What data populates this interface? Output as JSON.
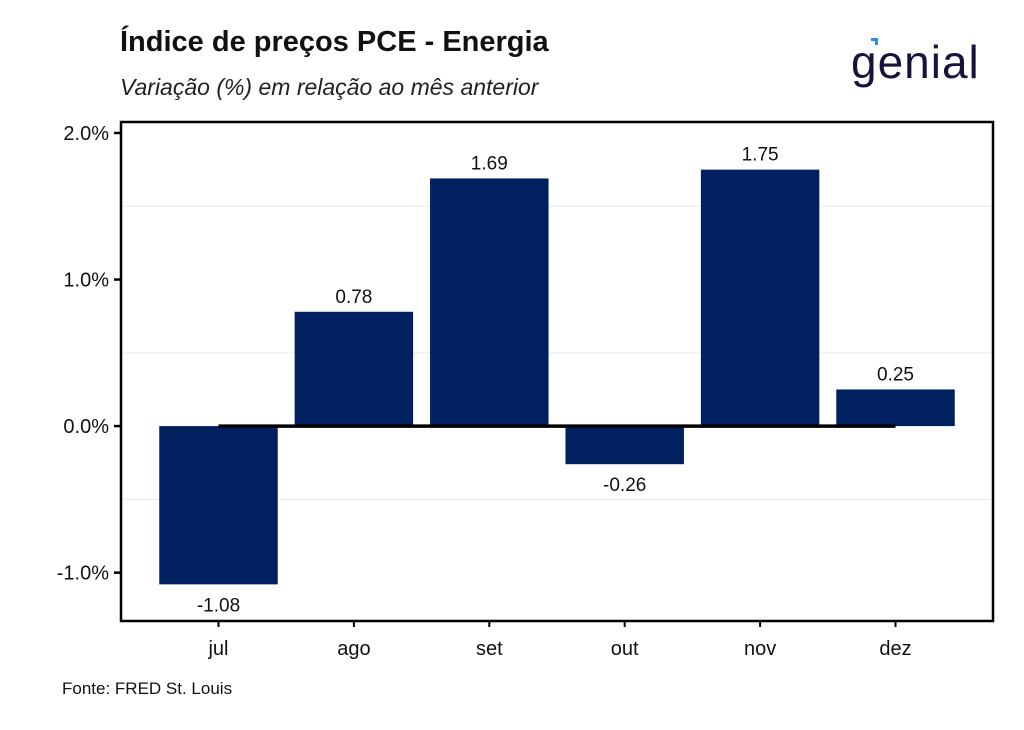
{
  "header": {
    "title": "Índice de preços PCE - Energia",
    "subtitle": "Variação (%) em relação ao mês anterior",
    "logo_text": "genial"
  },
  "footer": {
    "source": "Fonte: FRED St. Louis"
  },
  "colors": {
    "bar": "#002060",
    "zero_line": "#000000",
    "logo": "#14143c",
    "logo_accent": "#2a8cf0"
  },
  "chart_data": {
    "type": "bar",
    "title": "Índice de preços PCE - Energia",
    "subtitle": "Variação (%) em relação ao mês anterior",
    "xlabel": "",
    "ylabel": "",
    "categories": [
      "jul",
      "ago",
      "set",
      "out",
      "nov",
      "dez"
    ],
    "values": [
      -1.08,
      0.78,
      1.69,
      -0.26,
      1.75,
      0.25
    ],
    "data_labels": [
      "-1.08",
      "0.78",
      "1.69",
      "-0.26",
      "1.75",
      "0.25"
    ],
    "ylim": [
      -1.33,
      2.075
    ],
    "yticks": [
      -1.0,
      0.0,
      1.0,
      2.0
    ],
    "ytick_labels": [
      "-1.0%",
      "0.0%",
      "1.0%",
      "2.0%"
    ],
    "grid": true,
    "legend": "none"
  }
}
